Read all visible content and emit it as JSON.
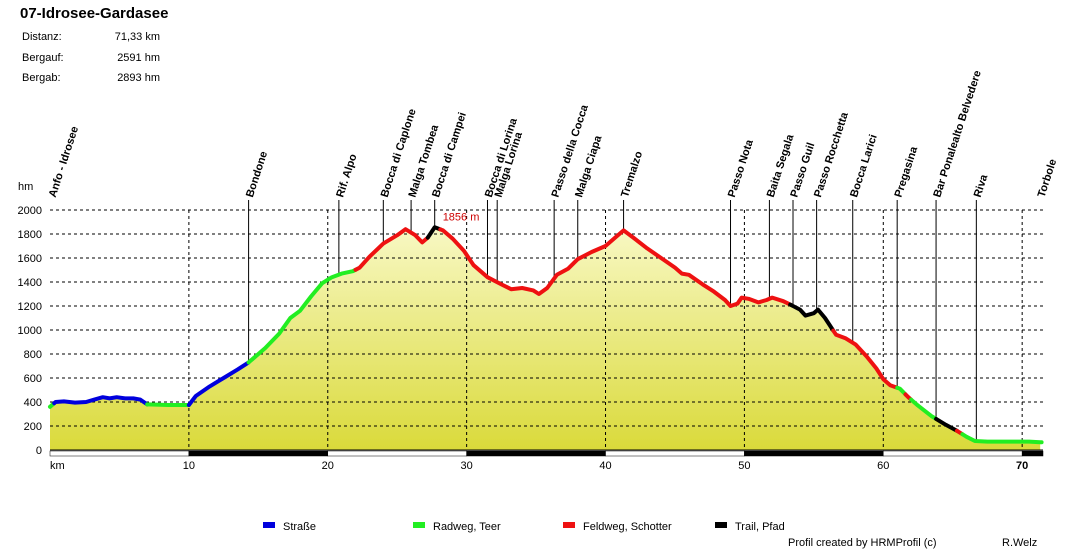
{
  "header": {
    "title": "07-Idrosee-Gardasee",
    "stats": [
      {
        "label": "Distanz:",
        "value": "71,33 km"
      },
      {
        "label": "Bergauf:",
        "value": "2591 hm"
      },
      {
        "label": "Bergab:",
        "value": "2893 hm"
      }
    ]
  },
  "chart_data": {
    "type": "area",
    "title": "07-Idrosee-Gardasee",
    "xlabel": "km",
    "ylabel": "hm",
    "xlim": [
      0,
      71.5
    ],
    "ylim": [
      0,
      2000
    ],
    "xticks": [
      10,
      20,
      30,
      40,
      50,
      60,
      70
    ],
    "yticks": [
      0,
      200,
      400,
      600,
      800,
      1000,
      1200,
      1400,
      1600,
      1800,
      2000
    ],
    "grid": true,
    "max_annotation": {
      "x": 27.7,
      "y": 1856,
      "label": "1856 m"
    },
    "profile": [
      [
        0,
        360
      ],
      [
        0.4,
        400
      ],
      [
        1.0,
        405
      ],
      [
        1.8,
        395
      ],
      [
        2.6,
        400
      ],
      [
        3.2,
        420
      ],
      [
        3.8,
        440
      ],
      [
        4.3,
        430
      ],
      [
        4.8,
        440
      ],
      [
        5.4,
        430
      ],
      [
        6.0,
        430
      ],
      [
        6.5,
        420
      ],
      [
        7.0,
        380
      ],
      [
        8.5,
        375
      ],
      [
        10.0,
        375
      ],
      [
        10.5,
        450
      ],
      [
        11.5,
        530
      ],
      [
        12.5,
        600
      ],
      [
        13.5,
        670
      ],
      [
        14.3,
        730
      ],
      [
        14.6,
        760
      ],
      [
        15.5,
        850
      ],
      [
        16.5,
        970
      ],
      [
        17.3,
        1100
      ],
      [
        18.0,
        1160
      ],
      [
        18.8,
        1280
      ],
      [
        19.6,
        1390
      ],
      [
        20.3,
        1440
      ],
      [
        21.0,
        1470
      ],
      [
        21.8,
        1490
      ],
      [
        22.3,
        1520
      ],
      [
        23.0,
        1610
      ],
      [
        24.0,
        1720
      ],
      [
        25.0,
        1790
      ],
      [
        25.6,
        1840
      ],
      [
        26.3,
        1790
      ],
      [
        26.8,
        1730
      ],
      [
        27.2,
        1770
      ],
      [
        27.7,
        1856
      ],
      [
        28.3,
        1830
      ],
      [
        29.0,
        1760
      ],
      [
        29.8,
        1660
      ],
      [
        30.5,
        1540
      ],
      [
        31.5,
        1440
      ],
      [
        32.5,
        1380
      ],
      [
        33.2,
        1340
      ],
      [
        34.0,
        1350
      ],
      [
        34.8,
        1330
      ],
      [
        35.2,
        1300
      ],
      [
        35.8,
        1350
      ],
      [
        36.5,
        1460
      ],
      [
        37.3,
        1510
      ],
      [
        38.0,
        1590
      ],
      [
        39.0,
        1650
      ],
      [
        40.0,
        1700
      ],
      [
        40.8,
        1780
      ],
      [
        41.3,
        1830
      ],
      [
        42.0,
        1770
      ],
      [
        43.0,
        1680
      ],
      [
        44.0,
        1600
      ],
      [
        45.0,
        1520
      ],
      [
        45.5,
        1470
      ],
      [
        46.0,
        1460
      ],
      [
        47.0,
        1380
      ],
      [
        47.8,
        1320
      ],
      [
        48.6,
        1250
      ],
      [
        49.0,
        1200
      ],
      [
        49.5,
        1220
      ],
      [
        49.8,
        1270
      ],
      [
        50.3,
        1260
      ],
      [
        51.0,
        1230
      ],
      [
        51.6,
        1250
      ],
      [
        52.0,
        1270
      ],
      [
        52.8,
        1240
      ],
      [
        53.5,
        1200
      ],
      [
        54.0,
        1170
      ],
      [
        54.4,
        1120
      ],
      [
        55.0,
        1140
      ],
      [
        55.3,
        1170
      ],
      [
        55.8,
        1100
      ],
      [
        56.6,
        960
      ],
      [
        57.3,
        930
      ],
      [
        58.0,
        880
      ],
      [
        58.8,
        780
      ],
      [
        59.5,
        680
      ],
      [
        60.0,
        590
      ],
      [
        60.5,
        540
      ],
      [
        61.2,
        510
      ],
      [
        61.8,
        440
      ],
      [
        62.5,
        370
      ],
      [
        63.5,
        280
      ],
      [
        64.5,
        210
      ],
      [
        65.3,
        160
      ],
      [
        66.0,
        110
      ],
      [
        66.6,
        75
      ],
      [
        67.5,
        70
      ],
      [
        69.0,
        70
      ],
      [
        70.5,
        70
      ],
      [
        71.3,
        65
      ]
    ],
    "segments": [
      {
        "from": 0,
        "to": 0.3,
        "type": "radweg"
      },
      {
        "from": 0.3,
        "to": 7.0,
        "type": "strasse"
      },
      {
        "from": 7.0,
        "to": 10.0,
        "type": "radweg"
      },
      {
        "from": 10.0,
        "to": 14.3,
        "type": "strasse"
      },
      {
        "from": 14.3,
        "to": 22.0,
        "type": "radweg"
      },
      {
        "from": 22.0,
        "to": 27.2,
        "type": "feldweg"
      },
      {
        "from": 27.2,
        "to": 28.1,
        "type": "trail"
      },
      {
        "from": 28.1,
        "to": 53.3,
        "type": "feldweg"
      },
      {
        "from": 53.3,
        "to": 56.4,
        "type": "trail"
      },
      {
        "from": 56.4,
        "to": 61.0,
        "type": "feldweg"
      },
      {
        "from": 61.0,
        "to": 61.6,
        "type": "radweg"
      },
      {
        "from": 61.6,
        "to": 62.0,
        "type": "feldweg"
      },
      {
        "from": 62.0,
        "to": 63.8,
        "type": "radweg"
      },
      {
        "from": 63.8,
        "to": 65.3,
        "type": "trail"
      },
      {
        "from": 65.3,
        "to": 65.7,
        "type": "feldweg"
      },
      {
        "from": 65.7,
        "to": 71.4,
        "type": "radweg"
      }
    ],
    "waypoints": [
      {
        "name": "Anfo - Idrosee",
        "x": 0.1,
        "line": false
      },
      {
        "name": "Bondone",
        "x": 14.3,
        "line": true
      },
      {
        "name": "Rif. Alpo",
        "x": 20.8,
        "line": true
      },
      {
        "name": "Bocca di Caplone",
        "x": 24.0,
        "line": true
      },
      {
        "name": "Malga Tombea",
        "x": 26.0,
        "line": true
      },
      {
        "name": "Bocca di Campei",
        "x": 27.7,
        "line": true
      },
      {
        "name": "Bocca di Lorina",
        "x": 31.5,
        "line": true
      },
      {
        "name": "Malga Lorina",
        "x": 32.2,
        "line": true
      },
      {
        "name": "Passo della Cocca",
        "x": 36.3,
        "line": true
      },
      {
        "name": "Malga Ciapa",
        "x": 38.0,
        "line": true
      },
      {
        "name": "Tremalzo",
        "x": 41.3,
        "line": true
      },
      {
        "name": "Passo Nota",
        "x": 49.0,
        "line": true
      },
      {
        "name": "Baita Segala",
        "x": 51.8,
        "line": true
      },
      {
        "name": "Passo Guil",
        "x": 53.5,
        "line": true
      },
      {
        "name": "Passo Rocchetta",
        "x": 55.2,
        "line": true
      },
      {
        "name": "Bocca Larici",
        "x": 57.8,
        "line": true
      },
      {
        "name": "Pregasina",
        "x": 61.0,
        "line": true
      },
      {
        "name": "Bar Ponalealto Belvedere",
        "x": 63.8,
        "line": true
      },
      {
        "name": "Riva",
        "x": 66.7,
        "line": true
      },
      {
        "name": "Torbole",
        "x": 71.3,
        "line": false
      }
    ],
    "legend": [
      {
        "key": "strasse",
        "label": "Straße",
        "color": "#0000dd"
      },
      {
        "key": "radweg",
        "label": "Radweg, Teer",
        "color": "#22ee22"
      },
      {
        "key": "feldweg",
        "label": "Feldweg, Schotter",
        "color": "#ee1111"
      },
      {
        "key": "trail",
        "label": "Trail, Pfad",
        "color": "#000000"
      }
    ]
  },
  "footer": {
    "credit": "Profil created by HRMProfil (c)",
    "author": "R.Welz"
  }
}
